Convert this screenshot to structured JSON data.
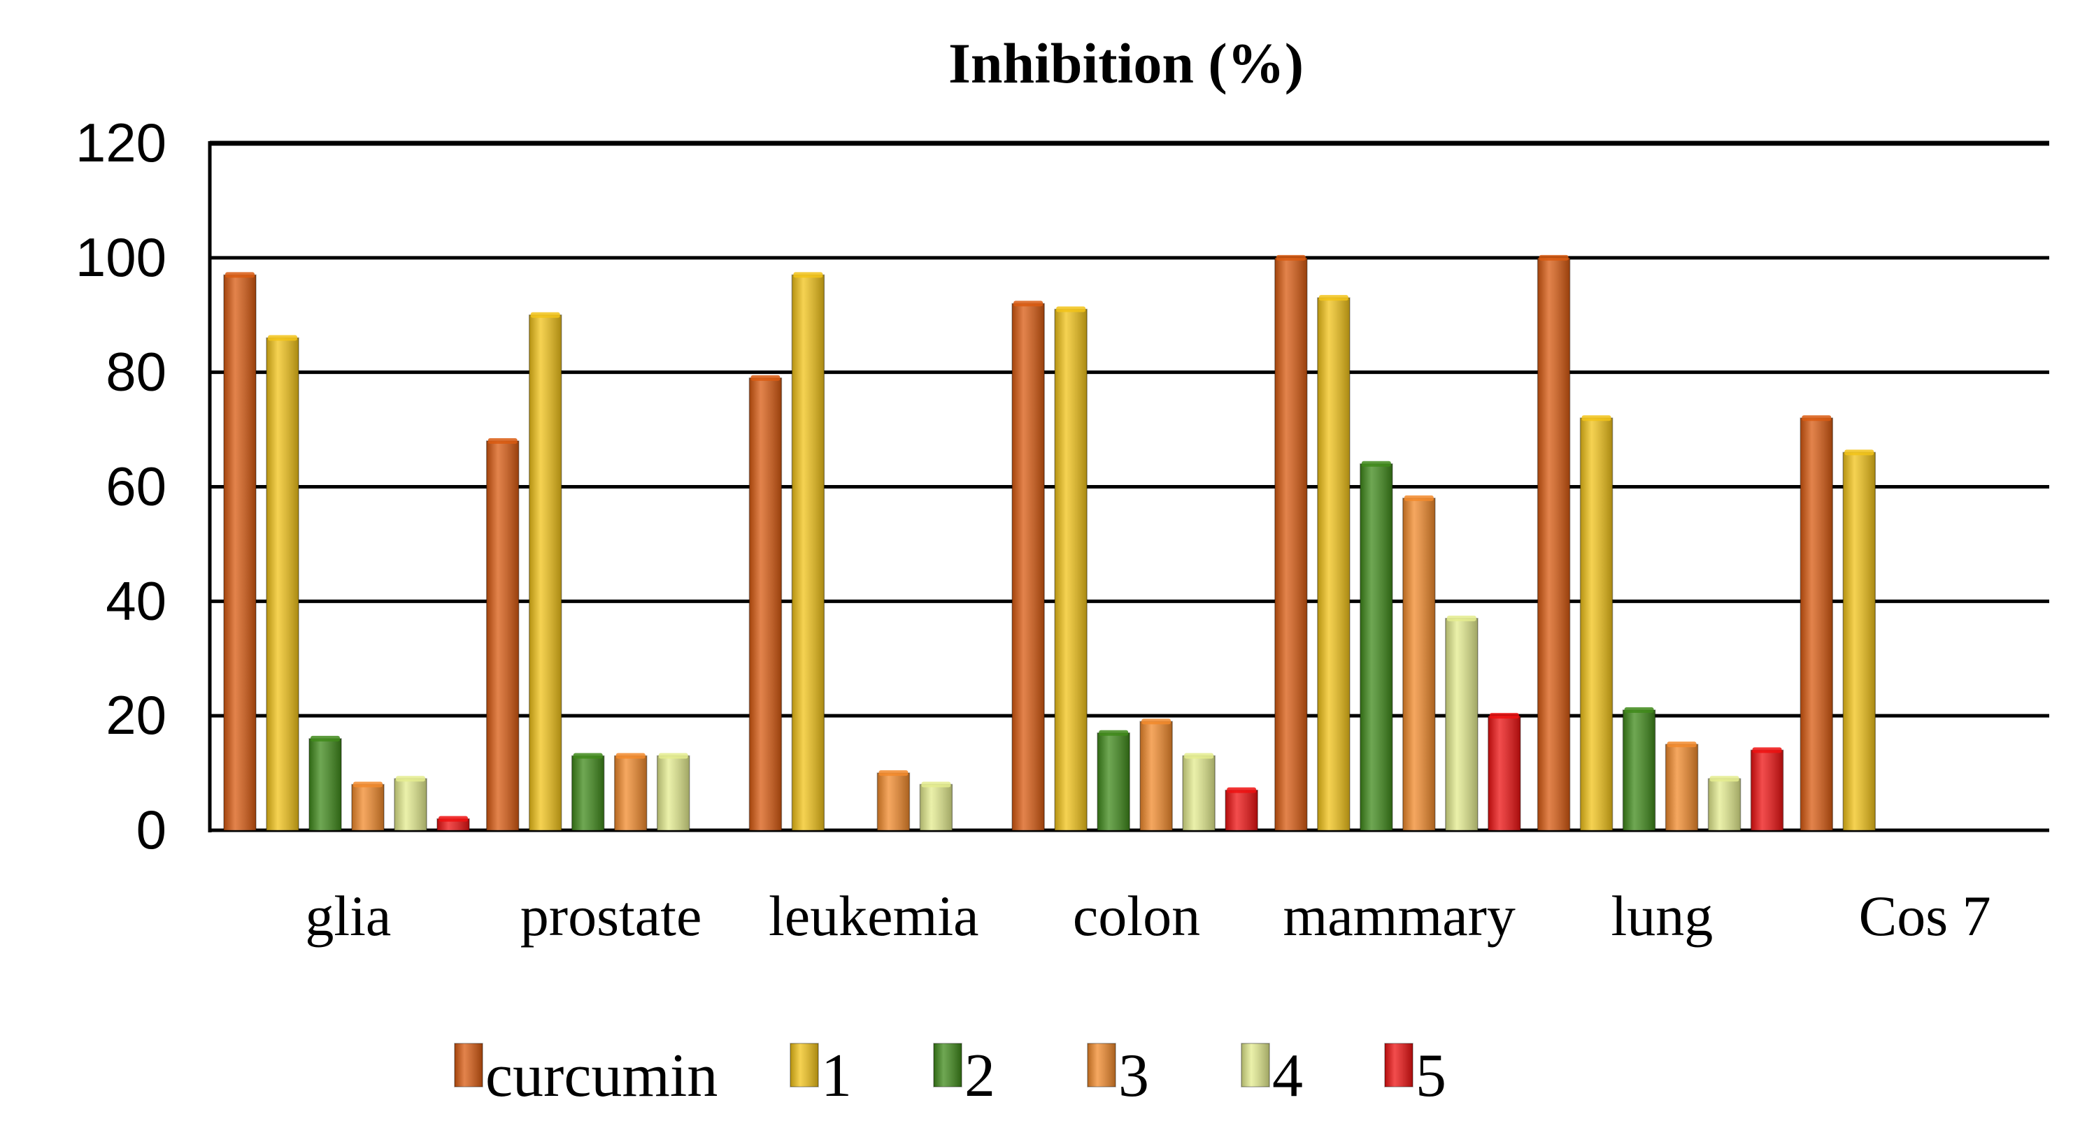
{
  "chart_data": {
    "type": "bar",
    "title": "Inhibition (%)",
    "xlabel": "",
    "ylabel": "",
    "ylim": [
      0,
      120
    ],
    "yticks": [
      "0",
      "20",
      "40",
      "60",
      "80",
      "100",
      "120"
    ],
    "grid": true,
    "legend_position": "bottom",
    "categories": [
      "glia",
      "prostate",
      "leukemia",
      "colon",
      "mammary",
      "lung",
      "Cos 7"
    ],
    "series": [
      {
        "name": "curcumin",
        "color": "#d95a10",
        "values": [
          97,
          68,
          79,
          92,
          100,
          100,
          72
        ]
      },
      {
        "name": "1",
        "color": "#f2c318",
        "values": [
          86,
          90,
          97,
          91,
          93,
          72,
          66
        ]
      },
      {
        "name": "2",
        "color": "#3f8a1a",
        "values": [
          16,
          13,
          null,
          17,
          64,
          21,
          null
        ]
      },
      {
        "name": "3",
        "color": "#f28a2b",
        "values": [
          8,
          13,
          10,
          19,
          58,
          15,
          null
        ]
      },
      {
        "name": "4",
        "color": "#e4ec8e",
        "values": [
          9,
          13,
          8,
          13,
          37,
          9,
          null
        ]
      },
      {
        "name": "5",
        "color": "#ee1111",
        "values": [
          2,
          null,
          null,
          7,
          20,
          14,
          null
        ]
      }
    ]
  }
}
